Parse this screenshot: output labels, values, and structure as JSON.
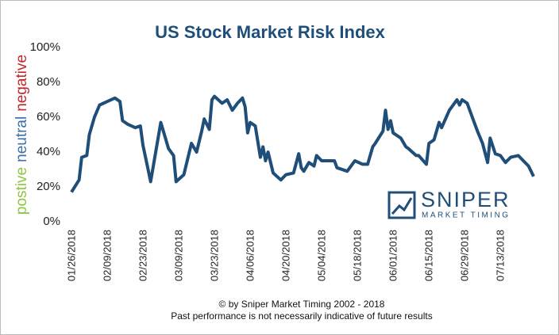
{
  "chart_data": {
    "type": "line",
    "title": "US Stock Market Risk Index",
    "y_axis_words": [
      {
        "text": "postive",
        "color": "#8dc63f"
      },
      {
        "text": "neutral",
        "color": "#3d6fa5"
      },
      {
        "text": "negative",
        "color": "#c0272d"
      }
    ],
    "x": [
      "01/26/2018",
      "01/29/2018",
      "01/30/2018",
      "02/01/2018",
      "02/02/2018",
      "02/04/2018",
      "02/06/2018",
      "02/09/2018",
      "02/12/2018",
      "02/14/2018",
      "02/15/2018",
      "02/17/2018",
      "02/20/2018",
      "02/22/2018",
      "02/23/2018",
      "02/25/2018",
      "02/26/2018",
      "02/28/2018",
      "03/02/2018",
      "03/05/2018",
      "03/07/2018",
      "03/08/2018",
      "03/11/2018",
      "03/14/2018",
      "03/16/2018",
      "03/18/2018",
      "03/19/2018",
      "03/21/2018",
      "03/22/2018",
      "03/23/2018",
      "03/26/2018",
      "03/28/2018",
      "03/30/2018",
      "04/01/2018",
      "04/03/2018",
      "04/04/2018",
      "04/05/2018",
      "04/06/2018",
      "04/08/2018",
      "04/10/2018",
      "04/11/2018",
      "04/12/2018",
      "04/13/2018",
      "04/15/2018",
      "04/18/2018",
      "04/20/2018",
      "04/23/2018",
      "04/25/2018",
      "04/26/2018",
      "04/27/2018",
      "04/29/2018",
      "05/01/2018",
      "05/02/2018",
      "05/04/2018",
      "05/09/2018",
      "05/10/2018",
      "05/14/2018",
      "05/16/2018",
      "05/17/2018",
      "05/20/2018",
      "05/22/2018",
      "05/24/2018",
      "05/25/2018",
      "05/28/2018",
      "05/29/2018",
      "05/30/2018",
      "05/31/2018",
      "06/01/2018",
      "06/04/2018",
      "06/06/2018",
      "06/07/2018",
      "06/10/2018",
      "06/11/2018",
      "06/14/2018",
      "06/15/2018",
      "06/17/2018",
      "06/18/2018",
      "06/19/2018",
      "06/20/2018",
      "06/23/2018",
      "06/24/2018",
      "06/26/2018",
      "06/27/2018",
      "06/28/2018",
      "06/30/2018",
      "07/02/2018",
      "07/04/2018",
      "07/06/2018",
      "07/08/2018",
      "07/09/2018",
      "07/11/2018",
      "07/13/2018",
      "07/15/2018",
      "07/17/2018",
      "07/20/2018",
      "07/22/2018",
      "07/24/2018",
      "07/26/2018"
    ],
    "series": [
      {
        "color": "#1f4e79",
        "values": [
          17,
          24,
          37,
          38,
          50,
          60,
          67,
          69,
          71,
          69,
          58,
          56,
          54,
          55,
          44,
          30,
          23,
          40,
          57,
          42,
          38,
          23,
          27,
          45,
          40,
          52,
          59,
          53,
          70,
          72,
          68,
          70,
          64,
          68,
          71,
          66,
          51,
          57,
          55,
          37,
          43,
          35,
          40,
          28,
          24,
          27,
          28,
          39,
          31,
          29,
          34,
          32,
          38,
          35,
          35,
          31,
          29,
          33,
          35,
          33,
          33,
          43,
          45,
          52,
          64,
          53,
          58,
          51,
          48,
          43,
          42,
          38,
          38,
          33,
          45,
          47,
          52,
          57,
          54,
          64,
          66,
          70,
          67,
          70,
          68,
          60,
          52,
          45,
          34,
          48,
          39,
          38,
          34,
          37,
          38,
          35,
          32,
          26
        ]
      }
    ],
    "xlim": [
      "01/26/2018",
      "07/26/2018"
    ],
    "xticks": [
      "01/26/2018",
      "02/09/2018",
      "02/23/2018",
      "03/09/2018",
      "03/23/2018",
      "04/06/2018",
      "04/20/2018",
      "05/04/2018",
      "05/18/2018",
      "06/01/2018",
      "06/15/2018",
      "06/29/2018",
      "07/13/2018"
    ],
    "ylim": [
      0,
      100
    ],
    "yticks": [
      {
        "value": 0,
        "label": "0%"
      },
      {
        "value": 20,
        "label": "20%"
      },
      {
        "value": 40,
        "label": "40%"
      },
      {
        "value": 60,
        "label": "60%"
      },
      {
        "value": 80,
        "label": "80%"
      },
      {
        "value": 100,
        "label": "100%"
      }
    ],
    "grid": false
  },
  "logo": {
    "name": "SNIPER",
    "tagline": "MARKET TIMING"
  },
  "footer": [
    "© by Sniper Market Timing 2002 - 2018",
    "Past performance is not necessarily indicative of future results"
  ]
}
